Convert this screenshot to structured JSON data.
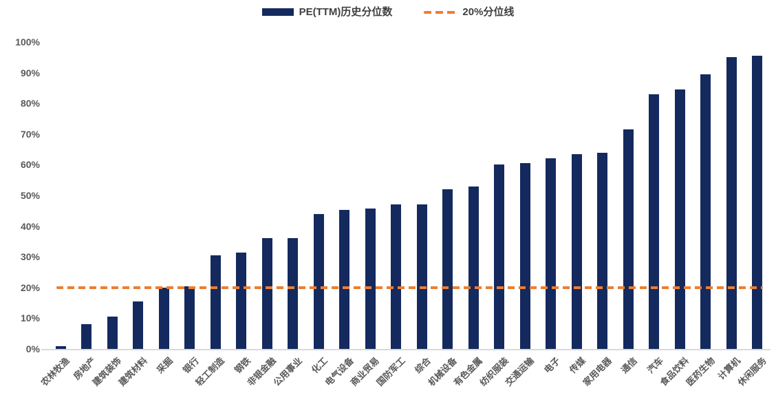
{
  "colors": {
    "bar": "#142A5E",
    "reference_line": "#ED7D31",
    "axis_text": "#595959",
    "legend_text": "#3F3F3F",
    "axis_line": "#D9D9D9"
  },
  "chart_data": {
    "type": "bar",
    "title": "",
    "categories": [
      "农林牧渔",
      "房地产",
      "建筑装饰",
      "建筑材料",
      "采掘",
      "银行",
      "轻工制造",
      "钢铁",
      "非银金融",
      "公用事业",
      "化工",
      "电气设备",
      "商业贸易",
      "国防军工",
      "综合",
      "机械设备",
      "有色金属",
      "纺织服装",
      "交通运输",
      "电子",
      "传媒",
      "家用电器",
      "通信",
      "汽车",
      "食品饮料",
      "医药生物",
      "计算机",
      "休闲服务"
    ],
    "series": [
      {
        "name": "PE(TTM)历史分位数",
        "values": [
          1,
          8,
          10.5,
          15.5,
          20,
          20.5,
          30.5,
          31.5,
          36,
          36,
          44,
          45.3,
          45.7,
          47,
          47,
          52,
          53,
          60,
          60.5,
          62,
          63.5,
          64,
          71.5,
          83,
          84.5,
          89.5,
          95,
          95.5
        ]
      }
    ],
    "reference_line": {
      "name": "20%分位线",
      "value": 20,
      "style": "dashed"
    },
    "xlabel": "",
    "ylabel": "",
    "ylim": [
      0,
      100
    ],
    "ytick_step": 10,
    "ytick_labels": [
      "0%",
      "10%",
      "20%",
      "30%",
      "40%",
      "50%",
      "60%",
      "70%",
      "80%",
      "90%",
      "100%"
    ],
    "grid": false,
    "legend_position": "top"
  }
}
